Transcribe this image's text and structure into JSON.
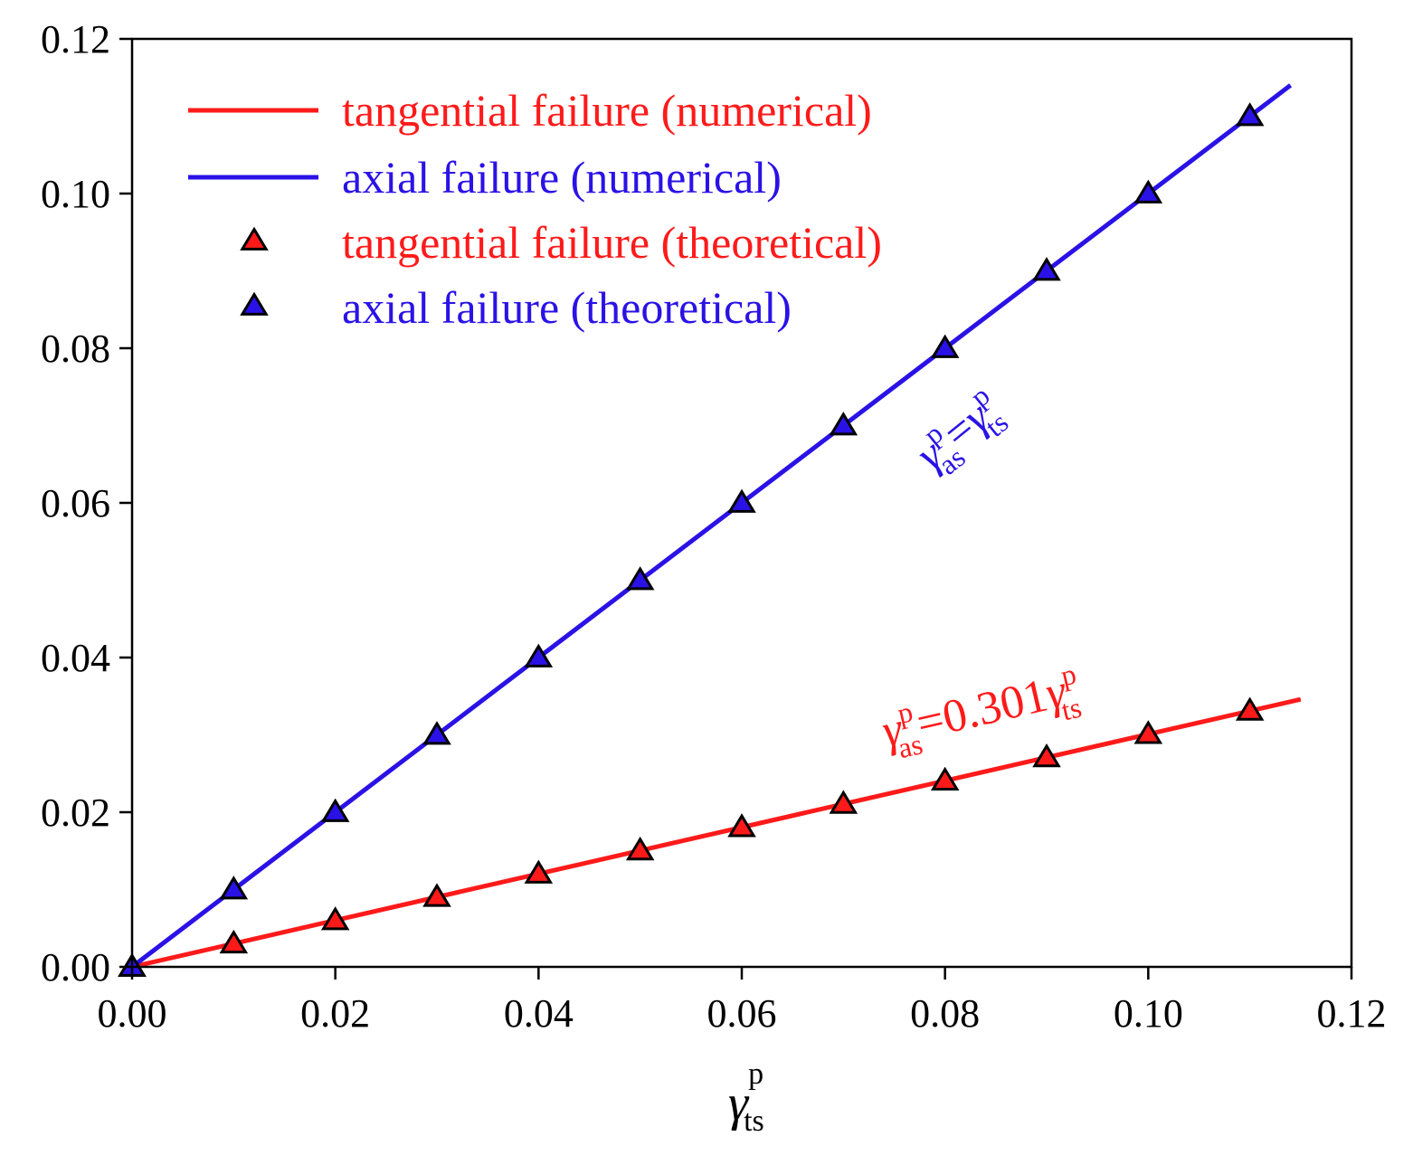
{
  "chart_data": {
    "type": "line",
    "title": "",
    "xlabel": "γts^p",
    "ylabel": "",
    "xlim": [
      0,
      0.12
    ],
    "ylim": [
      0,
      0.12
    ],
    "x_ticks": [
      "0.00",
      "0.02",
      "0.04",
      "0.06",
      "0.08",
      "0.10",
      "0.12"
    ],
    "y_ticks": [
      "0.00",
      "0.02",
      "0.04",
      "0.06",
      "0.08",
      "0.10",
      "0.12"
    ],
    "x_tick_values": [
      0,
      0.02,
      0.04,
      0.06,
      0.08,
      0.1,
      0.12
    ],
    "y_tick_values": [
      0,
      0.02,
      0.04,
      0.06,
      0.08,
      0.1,
      0.12
    ],
    "x_axis_title": {
      "symbol": "γ",
      "sub": "ts",
      "sup": "p"
    },
    "legend_position": "top-left",
    "series": [
      {
        "name": "tangential failure (numerical)",
        "kind": "line",
        "color": "#ff1a1a",
        "x": [
          0,
          0.115
        ],
        "y": [
          0,
          0.0346
        ]
      },
      {
        "name": "axial failure (numerical)",
        "kind": "line",
        "color": "#2a12e6",
        "x": [
          0,
          0.114
        ],
        "y": [
          0,
          0.114
        ]
      },
      {
        "name": "tangential failure (theoretical)",
        "kind": "marker",
        "color": "#ff1a1a",
        "x": [
          0,
          0.01,
          0.02,
          0.03,
          0.04,
          0.05,
          0.06,
          0.07,
          0.08,
          0.09,
          0.1,
          0.11
        ],
        "y": [
          0,
          0.00301,
          0.00602,
          0.00903,
          0.01204,
          0.01505,
          0.01806,
          0.02107,
          0.02408,
          0.02709,
          0.0301,
          0.03311
        ]
      },
      {
        "name": "axial failure (theoretical)",
        "kind": "marker",
        "color": "#2a12e6",
        "x": [
          0,
          0.01,
          0.02,
          0.03,
          0.04,
          0.05,
          0.06,
          0.07,
          0.08,
          0.09,
          0.1,
          0.11
        ],
        "y": [
          0,
          0.01,
          0.02,
          0.03,
          0.04,
          0.05,
          0.06,
          0.07,
          0.08,
          0.09,
          0.1,
          0.11
        ]
      }
    ],
    "annotations": [
      {
        "name": "axial-equation",
        "color": "#2a12e6",
        "symbol1": "γ",
        "sub1": "as",
        "sup1": "p",
        "eq": "=",
        "coef": "",
        "symbol2": "γ",
        "sub2": "ts",
        "sup2": "p"
      },
      {
        "name": "tangential-equation",
        "color": "#ff1a1a",
        "symbol1": "γ",
        "sub1": "as",
        "sup1": "p",
        "eq": "=",
        "coef": "0.301",
        "symbol2": "γ",
        "sub2": "ts",
        "sup2": "p"
      }
    ]
  }
}
